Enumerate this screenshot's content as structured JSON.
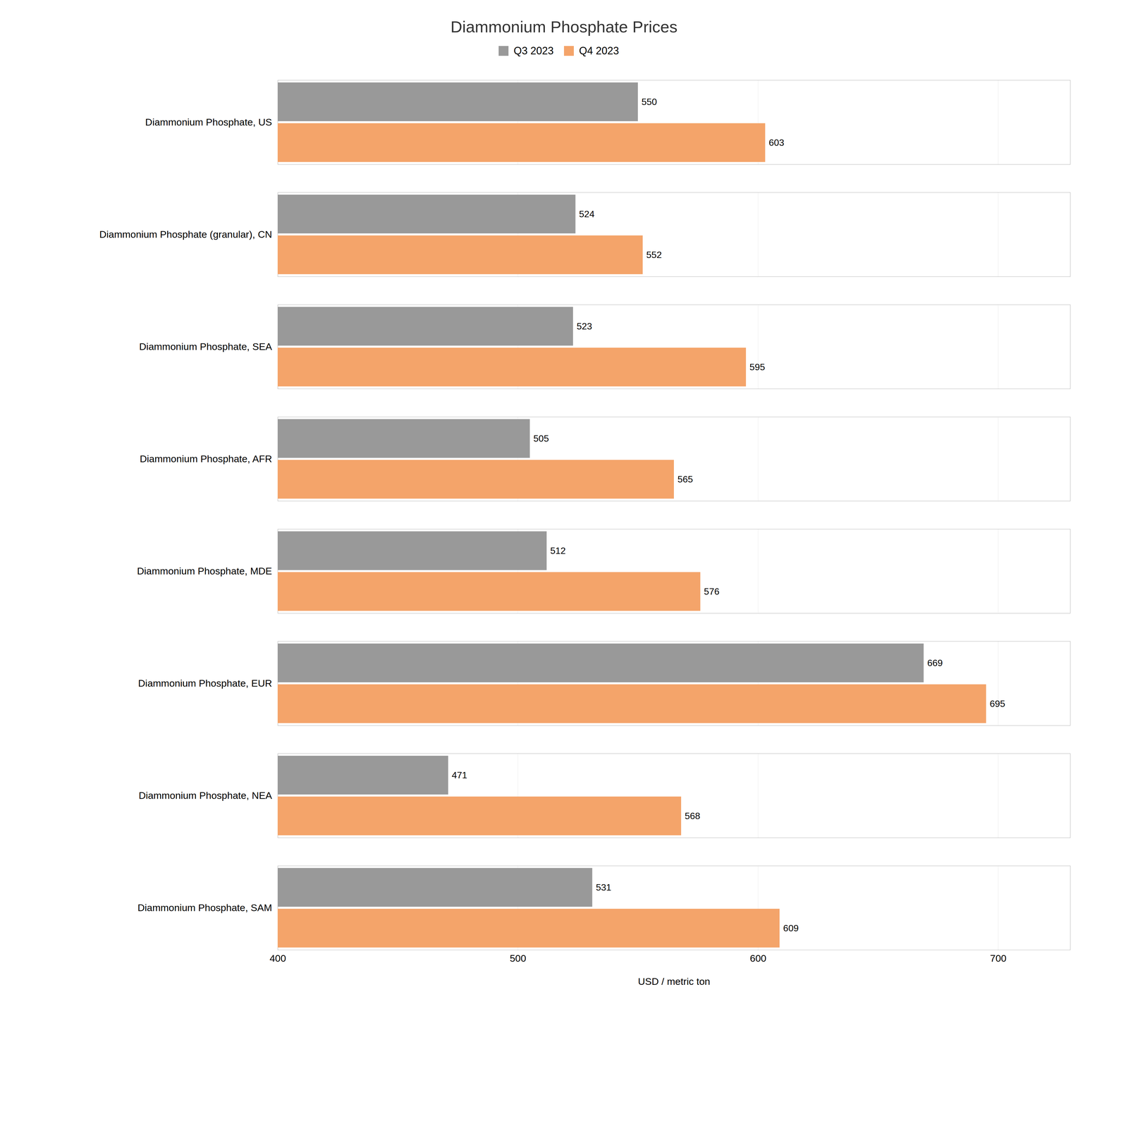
{
  "chart_data": {
    "type": "bar",
    "orientation": "horizontal",
    "title": "Diammonium Phosphate Prices",
    "xlabel": "USD / metric ton",
    "categories": [
      "Diammonium Phosphate, US",
      "Diammonium Phosphate (granular), CN",
      "Diammonium Phosphate, SEA",
      "Diammonium Phosphate, AFR",
      "Diammonium Phosphate, MDE",
      "Diammonium Phosphate, EUR",
      "Diammonium Phosphate, NEA",
      "Diammonium Phosphate, SAM"
    ],
    "series": [
      {
        "name": "Q3 2023",
        "color": "#999999",
        "values": [
          550,
          524,
          523,
          505,
          512,
          669,
          471,
          531
        ]
      },
      {
        "name": "Q4 2023",
        "color": "#F4A46A",
        "values": [
          603,
          552,
          595,
          565,
          576,
          695,
          568,
          609
        ]
      }
    ],
    "xlim": [
      400,
      730
    ],
    "xticks": [
      400,
      500,
      600,
      700
    ],
    "grid": true,
    "legend": "upper center",
    "data_labels": true
  }
}
